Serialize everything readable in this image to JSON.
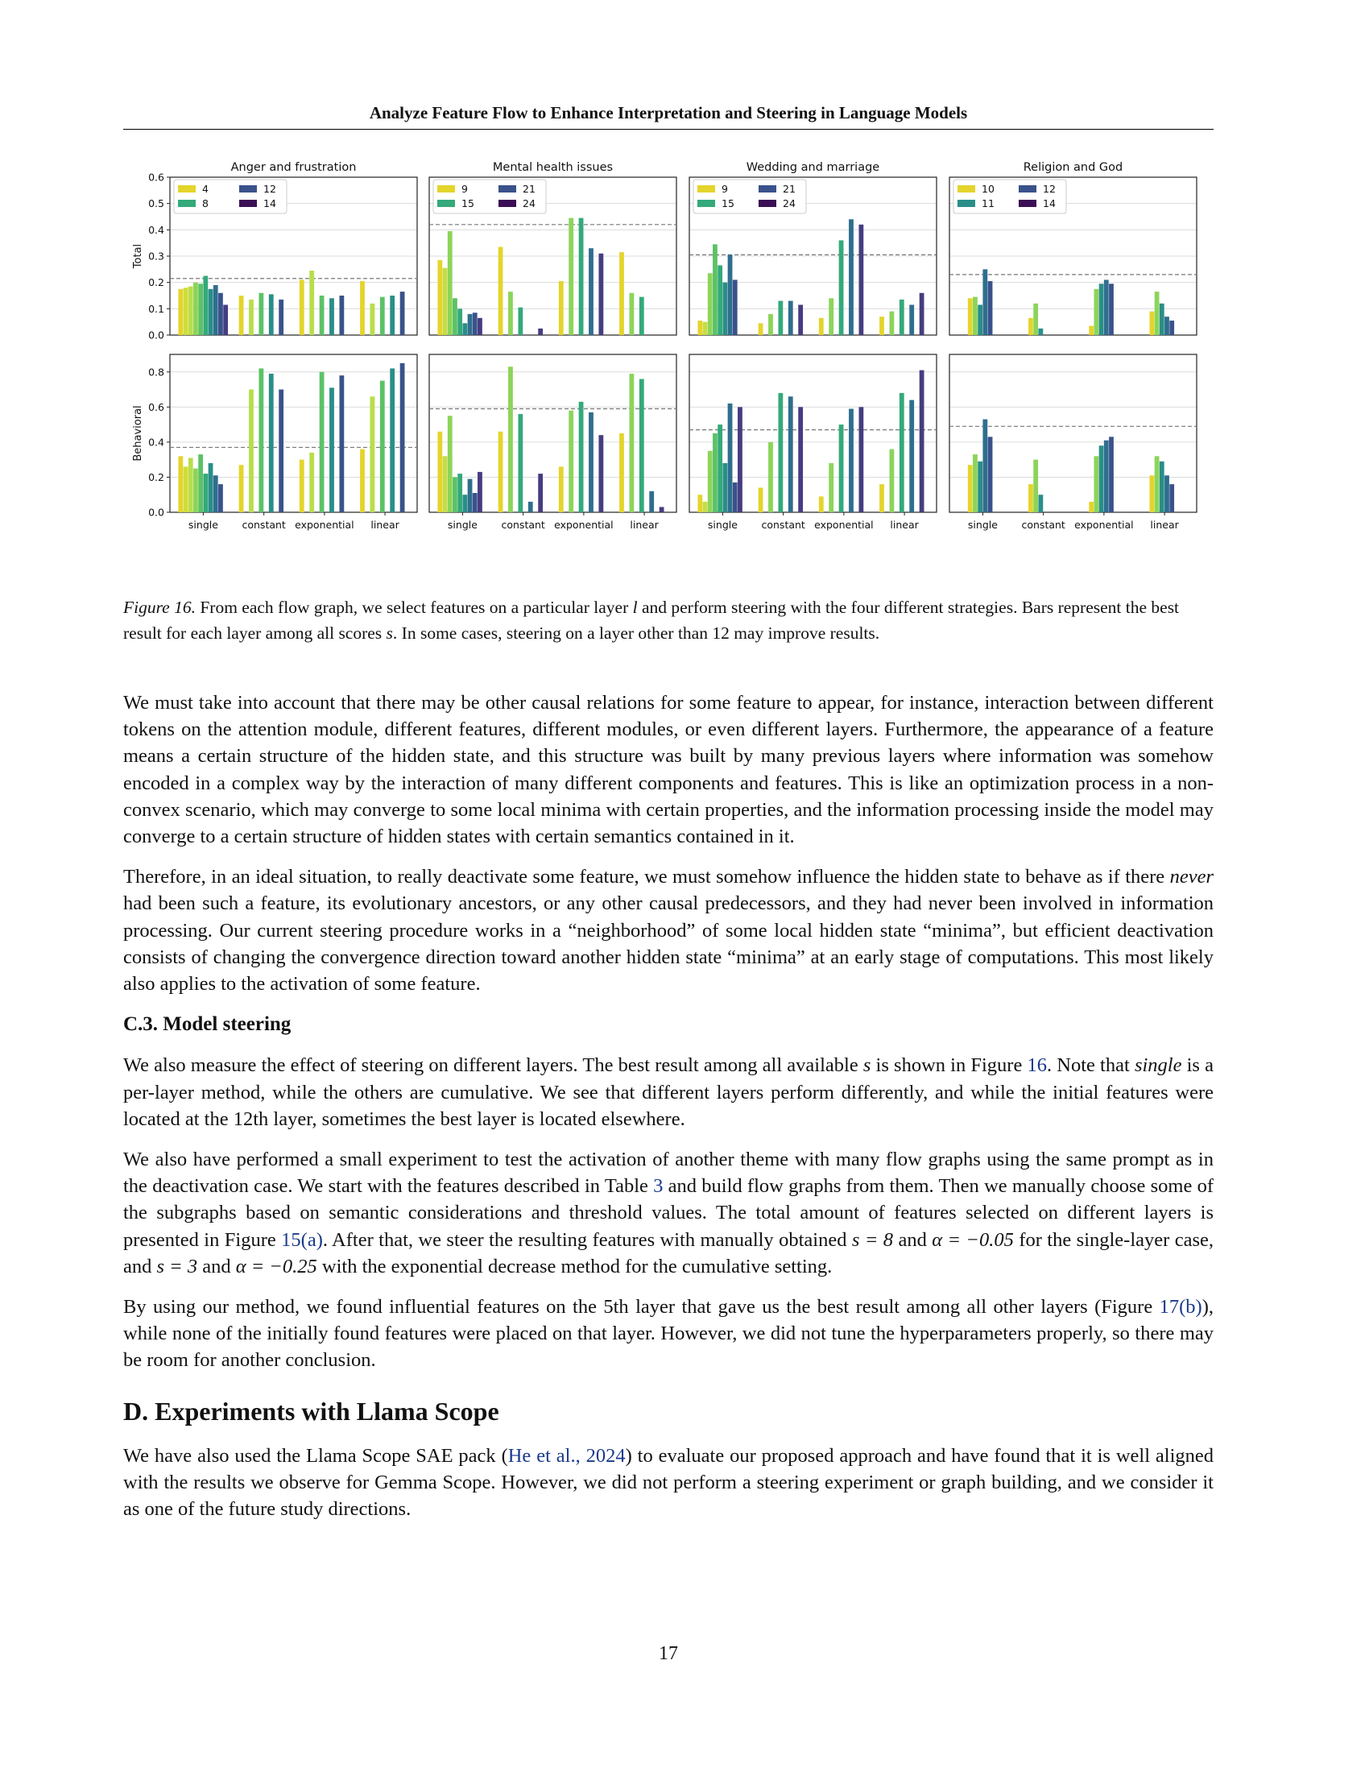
{
  "header": {
    "running_title": "Analyze Feature Flow to Enhance Interpretation and Steering in Language Models"
  },
  "chart_data": {
    "type": "bar",
    "title": "",
    "categories": [
      "single",
      "constant",
      "exponential",
      "linear"
    ],
    "rows": [
      {
        "ylabel": "Total",
        "ylim": [
          0,
          0.6
        ],
        "yticks": [
          "0.0",
          "0.1",
          "0.2",
          "0.3",
          "0.4",
          "0.5",
          "0.6"
        ]
      },
      {
        "ylabel": "Behavioral",
        "ylim": [
          0,
          0.9
        ],
        "yticks": [
          "0.0",
          "0.2",
          "0.4",
          "0.6",
          "0.8"
        ]
      }
    ],
    "panels": [
      {
        "title": "Anger and frustration",
        "layers": [
          "4",
          "8",
          "12",
          "14"
        ],
        "legend": [
          "4",
          "8",
          "12",
          "14"
        ],
        "colors": [
          "#e4d42c",
          "#d0dc3a",
          "#b8de4a",
          "#8cd45a",
          "#5cc266",
          "#34a97a",
          "#2a8e88",
          "#2f6e8e",
          "#3a528b",
          "#453d80",
          "#44206a",
          "#3b0f55"
        ],
        "total": {
          "baseline": 0.215,
          "values": [
            [
              0.175,
              0.18,
              0.185,
              0.2,
              0.195,
              0.225,
              0.175,
              0.19,
              0.16,
              0.115
            ],
            [
              0.15,
              null,
              0.135,
              null,
              0.16,
              null,
              0.155,
              null,
              0.135,
              null
            ],
            [
              0.21,
              null,
              0.245,
              null,
              0.15,
              null,
              0.14,
              null,
              0.15,
              null
            ],
            [
              0.205,
              null,
              0.12,
              null,
              0.145,
              null,
              0.15,
              null,
              0.165,
              null
            ]
          ]
        },
        "behavioral": {
          "baseline": 0.37,
          "values": [
            [
              0.32,
              0.26,
              0.31,
              0.25,
              0.33,
              0.22,
              0.28,
              0.21,
              0.16,
              null
            ],
            [
              0.27,
              null,
              0.7,
              null,
              0.82,
              null,
              0.79,
              null,
              0.7,
              null
            ],
            [
              0.3,
              null,
              0.34,
              null,
              0.8,
              null,
              0.71,
              null,
              0.78,
              null
            ],
            [
              0.36,
              null,
              0.66,
              null,
              0.75,
              null,
              0.82,
              null,
              0.85,
              null
            ]
          ]
        }
      },
      {
        "title": "Mental health issues",
        "layers": [
          "9",
          "15",
          "21",
          "24"
        ],
        "legend": [
          "9",
          "15",
          "21",
          "24"
        ],
        "colors": [
          "#e4d42c",
          "#c6dc44",
          "#8cd45a",
          "#5cc266",
          "#34a97a",
          "#2a8e88",
          "#2f6e8e",
          "#3a528b",
          "#453d80",
          "#44206a",
          "#3b0f55"
        ],
        "total": {
          "baseline": 0.42,
          "values": [
            [
              0.285,
              0.255,
              0.395,
              0.14,
              0.1,
              0.045,
              0.08,
              0.085,
              0.065,
              null
            ],
            [
              0.335,
              null,
              0.165,
              null,
              0.105,
              null,
              null,
              null,
              0.025,
              null
            ],
            [
              0.205,
              null,
              0.445,
              null,
              0.445,
              null,
              0.33,
              null,
              0.31,
              null
            ],
            [
              0.315,
              null,
              0.16,
              null,
              0.145,
              null,
              null,
              null,
              null,
              null
            ]
          ]
        },
        "behavioral": {
          "baseline": 0.59,
          "values": [
            [
              0.46,
              0.32,
              0.55,
              0.2,
              0.22,
              0.1,
              0.19,
              0.11,
              0.23,
              null
            ],
            [
              0.46,
              null,
              0.83,
              null,
              0.56,
              null,
              0.06,
              null,
              0.22,
              null
            ],
            [
              0.26,
              null,
              0.58,
              null,
              0.63,
              null,
              0.57,
              null,
              0.44,
              null
            ],
            [
              0.45,
              null,
              0.79,
              null,
              0.76,
              null,
              0.12,
              null,
              0.03,
              null
            ]
          ]
        }
      },
      {
        "title": "Wedding and marriage",
        "layers": [
          "9",
          "15",
          "21",
          "24"
        ],
        "legend": [
          "9",
          "15",
          "21",
          "24"
        ],
        "colors": [
          "#e4d42c",
          "#c6dc44",
          "#8cd45a",
          "#5cc266",
          "#34a97a",
          "#2a8e88",
          "#2f6e8e",
          "#3a528b",
          "#453d80",
          "#44206a",
          "#3b0f55"
        ],
        "total": {
          "baseline": 0.305,
          "values": [
            [
              0.055,
              0.05,
              0.235,
              0.345,
              0.265,
              0.2,
              0.305,
              0.21,
              null,
              null
            ],
            [
              0.045,
              null,
              0.08,
              null,
              0.13,
              null,
              0.13,
              null,
              0.115,
              null
            ],
            [
              0.065,
              null,
              0.14,
              null,
              0.36,
              null,
              0.44,
              null,
              0.42,
              null
            ],
            [
              0.07,
              null,
              0.09,
              null,
              0.135,
              null,
              0.115,
              null,
              0.16,
              null
            ]
          ]
        },
        "behavioral": {
          "baseline": 0.47,
          "values": [
            [
              0.1,
              0.06,
              0.35,
              0.45,
              0.5,
              0.28,
              0.62,
              0.17,
              0.6,
              null
            ],
            [
              0.14,
              null,
              0.4,
              null,
              0.68,
              null,
              0.66,
              null,
              0.6,
              null
            ],
            [
              0.09,
              null,
              0.28,
              null,
              0.5,
              null,
              0.59,
              null,
              0.6,
              null
            ],
            [
              0.16,
              null,
              0.36,
              null,
              0.68,
              null,
              0.64,
              null,
              0.81,
              null
            ]
          ]
        }
      },
      {
        "title": "Religion and God",
        "layers": [
          "10",
          "11",
          "12",
          "14"
        ],
        "legend": [
          "10",
          "11",
          "12",
          "14"
        ],
        "colors": [
          "#e4d42c",
          "#8cd45a",
          "#2a8e88",
          "#2f6e8e",
          "#3a528b",
          "#3b0f55"
        ],
        "total": {
          "baseline": 0.23,
          "values": [
            [
              0.14,
              0.145,
              0.115,
              0.25,
              0.205,
              null
            ],
            [
              0.065,
              0.12,
              0.025,
              null,
              null,
              null
            ],
            [
              0.035,
              0.175,
              0.195,
              0.21,
              0.195,
              null
            ],
            [
              0.09,
              0.165,
              0.12,
              0.07,
              0.055,
              null
            ]
          ]
        },
        "behavioral": {
          "baseline": 0.49,
          "values": [
            [
              0.27,
              0.33,
              0.29,
              0.53,
              0.43,
              null
            ],
            [
              0.16,
              0.3,
              0.1,
              null,
              null,
              null
            ],
            [
              0.06,
              0.32,
              0.38,
              0.41,
              0.43,
              null
            ],
            [
              0.21,
              0.32,
              0.29,
              0.21,
              0.16,
              null
            ]
          ]
        }
      }
    ]
  },
  "figure": {
    "label": "Figure 16.",
    "caption_a": " From each flow graph, we select features on a particular layer ",
    "caption_var_l": "l",
    "caption_b": " and perform steering with the four different strategies. Bars represent the best result for each layer among all scores ",
    "caption_var_s": "s",
    "caption_c": ". In some cases, steering on a layer other than 12 may improve results."
  },
  "para1": "We must take into account that there may be other causal relations for some feature to appear, for instance, interaction between different tokens on the attention module, different features, different modules, or even different layers. Furthermore, the appearance of a feature means a certain structure of the hidden state, and this structure was built by many previous layers where information was somehow encoded in a complex way by the interaction of many different components and features. This is like an optimization process in a non-convex scenario, which may converge to some local minima with certain properties, and the information processing inside the model may converge to a certain structure of hidden states with certain semantics contained in it.",
  "para2": {
    "a": "Therefore, in an ideal situation, to really deactivate some feature, we must somehow influence the hidden state to behave as if there ",
    "em": "never",
    "b": " had been such a feature, its evolutionary ancestors, or any other causal predecessors, and they had never been involved in information processing. Our current steering procedure works in a “neighborhood” of some local hidden state “minima”, but efficient deactivation consists of changing the convergence direction toward another hidden state “minima” at an early stage of computations. This most likely also applies to the activation of some feature."
  },
  "section_c3": "C.3. Model steering",
  "para3": {
    "a": "We also measure the effect of steering on different layers. The best result among all available ",
    "s": "s",
    "b": " is shown in Figure ",
    "ref": "16",
    "c": ". Note that ",
    "em": "single",
    "d": " is a per-layer method, while the others are cumulative. We see that different layers perform differently, and while the initial features were located at the 12th layer, sometimes the best layer is located elsewhere."
  },
  "para4": {
    "a": "We also have performed a small experiment to test the activation of another theme with many flow graphs using the same prompt as in the deactivation case. We start with the features described in Table ",
    "ref_table": "3",
    "b": " and build flow graphs from them. Then we manually choose some of the subgraphs based on semantic considerations and threshold values. The total amount of features selected on different layers is presented in Figure ",
    "ref_fig": "15(a)",
    "c": ". After that, we steer the resulting features with manually obtained ",
    "m1": "s = 8",
    "d": " and ",
    "m2": "α = −0.05",
    "e": " for the single-layer case, and ",
    "m3": "s = 3",
    "f": " and ",
    "m4": "α = −0.25",
    "g": " with the exponential decrease method for the cumulative setting."
  },
  "para5": {
    "a": "By using our method, we found influential features on the 5th layer that gave us the best result among all other layers (Figure ",
    "ref": "17(b)",
    "b": "), while none of the initially found features were placed on that layer. However, we did not tune the hyperparameters properly, so there may be room for another conclusion."
  },
  "section_d": "D. Experiments with Llama Scope",
  "para6": {
    "a": "We have also used the Llama Scope SAE pack (",
    "cite": "He et al., 2024",
    "b": ") to evaluate our proposed approach and have found that it is well aligned with the results we observe for Gemma Scope. However, we did not perform a steering experiment or graph building, and we consider it as one of the future study directions."
  },
  "page_number": "17"
}
